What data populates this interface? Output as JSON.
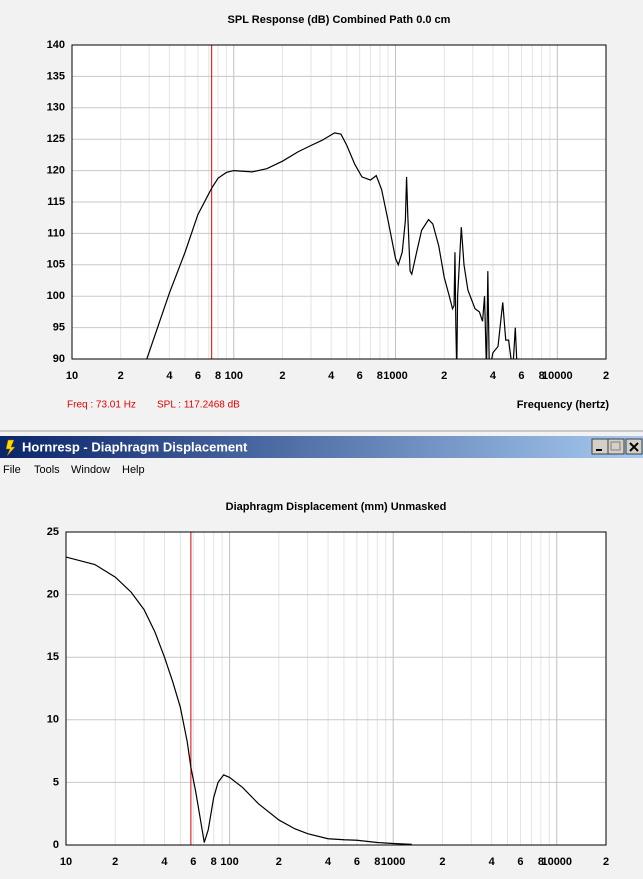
{
  "window": {
    "title": "Hornresp - Diaphragm Displacement",
    "menu": [
      "File",
      "Tools",
      "Window",
      "Help"
    ]
  },
  "chart_data": [
    {
      "type": "line",
      "title": "SPL Response (dB)   Combined   Path 0.0 cm",
      "xlabel": "Frequency (hertz)",
      "cursor_readout": [
        "Freq : 73.01 Hz",
        "SPL : 117.2468 dB"
      ],
      "cursor_x": 73.01,
      "cursor_color": "#e00000",
      "xscale": "log",
      "xlim": [
        10,
        20000
      ],
      "ylim": [
        90,
        140
      ],
      "grid": true,
      "xticks": [
        10,
        {
          "value": 20,
          "label": "2"
        },
        {
          "value": 40,
          "label": "4"
        },
        {
          "value": 60,
          "label": "6"
        },
        {
          "value": 80,
          "label": "8"
        },
        100,
        {
          "value": 200,
          "label": "2"
        },
        {
          "value": 400,
          "label": "4"
        },
        {
          "value": 600,
          "label": "6"
        },
        {
          "value": 800,
          "label": "8"
        },
        1000,
        {
          "value": 2000,
          "label": "2"
        },
        {
          "value": 4000,
          "label": "4"
        },
        {
          "value": 6000,
          "label": "6"
        },
        {
          "value": 8000,
          "label": "8"
        },
        10000,
        {
          "value": 20000,
          "label": "2"
        }
      ],
      "xminorticks": [
        30,
        50,
        70,
        90,
        300,
        500,
        700,
        900,
        3000,
        5000,
        7000,
        9000
      ],
      "yticks": [
        90,
        95,
        100,
        105,
        110,
        115,
        120,
        125,
        130,
        135,
        140
      ],
      "series": [
        {
          "color": "#000000",
          "x": [
            29,
            40,
            50,
            60,
            73.01,
            80,
            90,
            100,
            130,
            160,
            200,
            250,
            300,
            350,
            420,
            460,
            500,
            560,
            620,
            700,
            760,
            820,
            900,
            1000,
            1040,
            1100,
            1150,
            1170,
            1190,
            1230,
            1260,
            1350,
            1450,
            1600,
            1700,
            1850,
            2000,
            2150,
            2250,
            2300,
            2330,
            2360,
            2390,
            2420,
            2550,
            2650,
            2800,
            3100,
            3300,
            3450,
            3550,
            3650,
            3720,
            3800,
            4000,
            4300,
            4600,
            4800,
            5000,
            5300,
            5500,
            5700
          ],
          "values": [
            90,
            100.5,
            107,
            113,
            117.2,
            118.8,
            119.7,
            120,
            119.8,
            120.3,
            121.5,
            123,
            124,
            124.8,
            126,
            125.8,
            124,
            121,
            119,
            118.5,
            119.2,
            117,
            112,
            106,
            105,
            107,
            112,
            119,
            113,
            104,
            103.5,
            107,
            110.5,
            112.2,
            111.5,
            108,
            103,
            100,
            98,
            98.5,
            107,
            95,
            88,
            100,
            111,
            105,
            101,
            98,
            97.5,
            96,
            100,
            88,
            104,
            88,
            91,
            92,
            99,
            93,
            93,
            88,
            95,
            86
          ]
        }
      ]
    },
    {
      "type": "line",
      "title": "Diaphragm Displacement (mm)   Unmasked",
      "cursor_x": 58,
      "cursor_color": "#e00000",
      "xscale": "log",
      "xlim": [
        10,
        20000
      ],
      "ylim": [
        0,
        25
      ],
      "grid": true,
      "xticks": [
        10,
        {
          "value": 20,
          "label": "2"
        },
        {
          "value": 40,
          "label": "4"
        },
        {
          "value": 60,
          "label": "6"
        },
        {
          "value": 80,
          "label": "8"
        },
        100,
        {
          "value": 200,
          "label": "2"
        },
        {
          "value": 400,
          "label": "4"
        },
        {
          "value": 600,
          "label": "6"
        },
        {
          "value": 800,
          "label": "8"
        },
        1000,
        {
          "value": 2000,
          "label": "2"
        },
        {
          "value": 4000,
          "label": "4"
        },
        {
          "value": 6000,
          "label": "6"
        },
        {
          "value": 8000,
          "label": "8"
        },
        10000,
        {
          "value": 20000,
          "label": "2"
        }
      ],
      "xminorticks": [
        30,
        50,
        70,
        90,
        300,
        500,
        700,
        900,
        3000,
        5000,
        7000,
        9000
      ],
      "yticks": [
        0,
        5,
        10,
        15,
        20,
        25
      ],
      "series": [
        {
          "color": "#000000",
          "x": [
            10,
            15,
            20,
            25,
            30,
            35,
            40,
            45,
            50,
            55,
            58,
            62,
            66,
            70,
            74,
            80,
            85,
            92,
            100,
            120,
            150,
            200,
            250,
            300,
            400,
            500,
            600,
            800,
            1000,
            1300
          ],
          "values": [
            23,
            22.4,
            21.4,
            20.2,
            18.8,
            17,
            15,
            13,
            11,
            8.3,
            6.2,
            4.3,
            2.2,
            0.2,
            1.2,
            3.8,
            5,
            5.6,
            5.4,
            4.6,
            3.3,
            2,
            1.3,
            0.9,
            0.5,
            0.42,
            0.38,
            0.2,
            0.12,
            0.05
          ]
        }
      ]
    }
  ]
}
